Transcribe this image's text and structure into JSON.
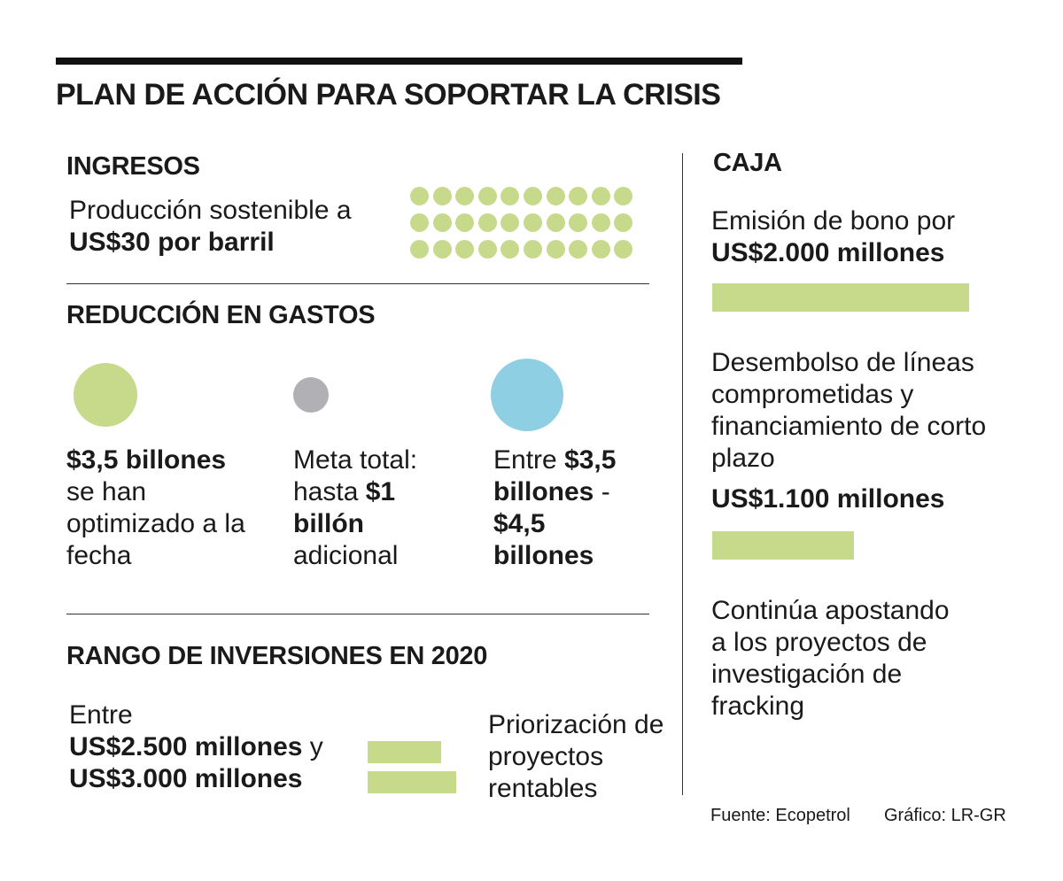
{
  "title": "PLAN DE ACCIÓN PARA SOPORTAR LA CRISIS",
  "colors": {
    "green": "#c7d98a",
    "gray": "#b0b0b5",
    "blue": "#8ecfe3",
    "text": "#1a1a1a"
  },
  "ingresos": {
    "heading": "INGRESOS",
    "text_line1": "Producción sostenible a",
    "text_bold": "US$30 por barril",
    "dot_count": 30
  },
  "gastos": {
    "heading": "REDUCCIÓN EN GASTOS",
    "items": [
      {
        "color_key": "green",
        "bold1": "$3,5 billones",
        "text1": "se han optimizado a la fecha"
      },
      {
        "color_key": "gray",
        "text1": "Meta total: hasta",
        "bold1": "$1 billón",
        "text2": "adicional"
      },
      {
        "color_key": "blue",
        "text1": "Entre",
        "bold1": "$3,5 billones",
        "text2": " -",
        "bold2": "$4,5 billones"
      }
    ]
  },
  "inversiones": {
    "heading": "RANGO DE INVERSIONES EN 2020",
    "text_line1": "Entre",
    "bold1": "US$2.500 millones",
    "connector": " y",
    "bold2": "US$3.000 millones",
    "bar_values": [
      2500,
      3000
    ],
    "side_note": "Priorización de proyectos rentables"
  },
  "caja": {
    "heading": "CAJA",
    "item1_text": "Emisión de bono por",
    "item1_bold": "US$2.000 millones",
    "item1_value": 2000,
    "item2_text": "Desembolso de líneas comprometidas y financiamiento de corto plazo",
    "item2_bold": "US$1.100 millones",
    "item2_value": 1100,
    "item3_text": "Continúa apostando a los proyectos de investigación de fracking"
  },
  "footer": {
    "source": "Fuente: Ecopetrol",
    "credit": "Gráfico: LR-GR"
  }
}
